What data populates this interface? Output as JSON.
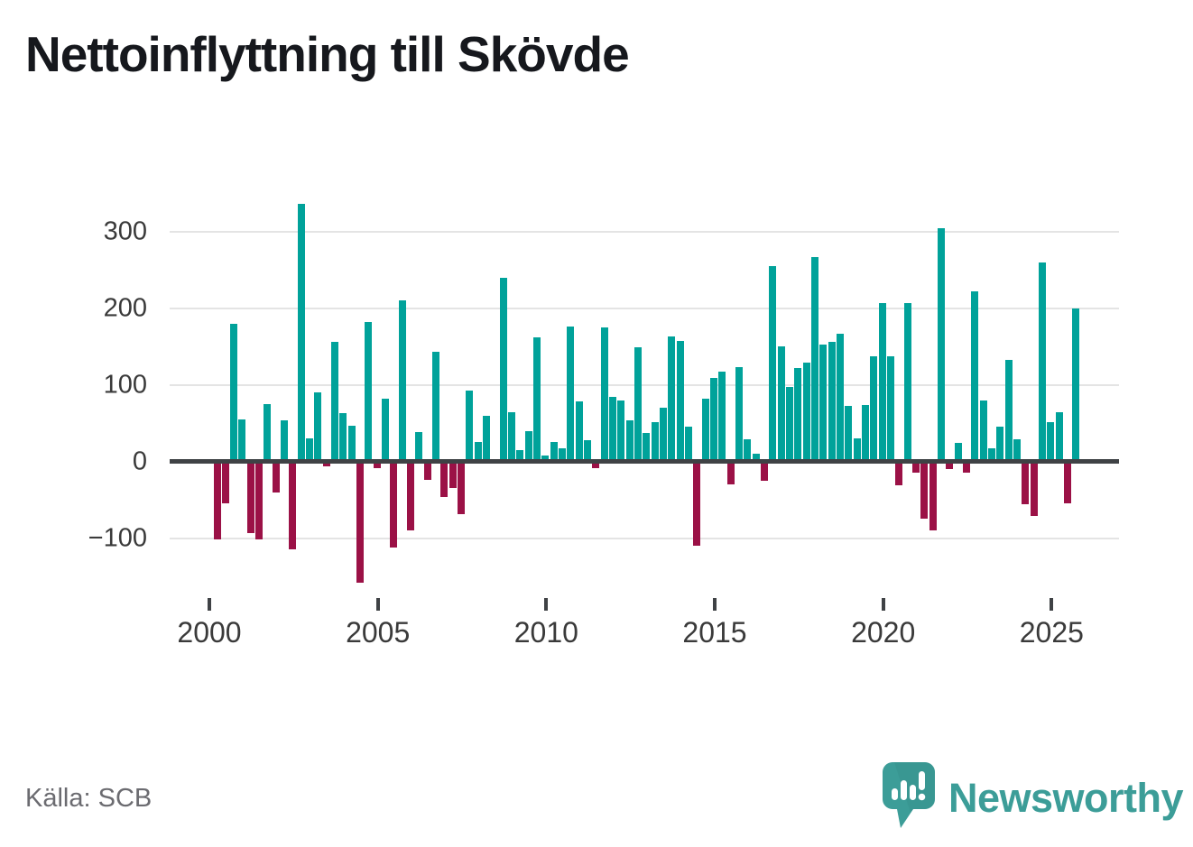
{
  "title": "Nettoinflyttning till Skövde",
  "source": "Källa: SCB",
  "brand": {
    "name": "Newsworthy",
    "color": "#3C9D98"
  },
  "colors": {
    "positive": "#00A29A",
    "negative": "#9B1146",
    "axis_line": "#3F4245",
    "grid": "#E4E4E4",
    "tick_text": "#3A3A3A",
    "source_text": "#6B6B70",
    "title_text": "#16181D"
  },
  "chart_data": {
    "type": "bar",
    "title": "Nettoinflyttning till Skövde",
    "frequency": "quarterly",
    "period_start": "2000Q1",
    "period_end": "2025Q3",
    "values": [
      -102,
      -54,
      180,
      55,
      -93,
      -102,
      75,
      -40,
      54,
      -115,
      337,
      30,
      90,
      -6,
      157,
      63,
      47,
      -158,
      182,
      -8,
      82,
      -112,
      211,
      -90,
      39,
      -24,
      144,
      -46,
      -35,
      -69,
      93,
      26,
      60,
      0,
      240,
      65,
      15,
      40,
      162,
      8,
      26,
      17,
      177,
      79,
      28,
      -9,
      175,
      85,
      80,
      54,
      149,
      37,
      52,
      71,
      163,
      158,
      46,
      -110,
      82,
      109,
      117,
      -30,
      124,
      29,
      10,
      -25,
      255,
      150,
      98,
      122,
      129,
      267,
      153,
      156,
      167,
      73,
      30,
      74,
      138,
      207,
      138,
      -31,
      207,
      -14,
      -75,
      -90,
      305,
      -10,
      24,
      -14,
      222,
      80,
      17,
      46,
      133,
      29,
      -56,
      -71,
      260,
      52,
      65,
      -54,
      200
    ],
    "yticks": [
      300,
      200,
      100,
      0,
      -100
    ],
    "ytick_labels": [
      "300",
      "200",
      "100",
      "0",
      "−100"
    ],
    "xticks": [
      {
        "label": "2000",
        "quarter_index": 0
      },
      {
        "label": "2005",
        "quarter_index": 20
      },
      {
        "label": "2010",
        "quarter_index": 40
      },
      {
        "label": "2015",
        "quarter_index": 60
      },
      {
        "label": "2020",
        "quarter_index": 80
      },
      {
        "label": "2025",
        "quarter_index": 100
      }
    ],
    "ylim": [
      -170,
      345
    ],
    "grid": true,
    "legend": false,
    "positive_color": "#00A29A",
    "negative_color": "#9B1146"
  }
}
